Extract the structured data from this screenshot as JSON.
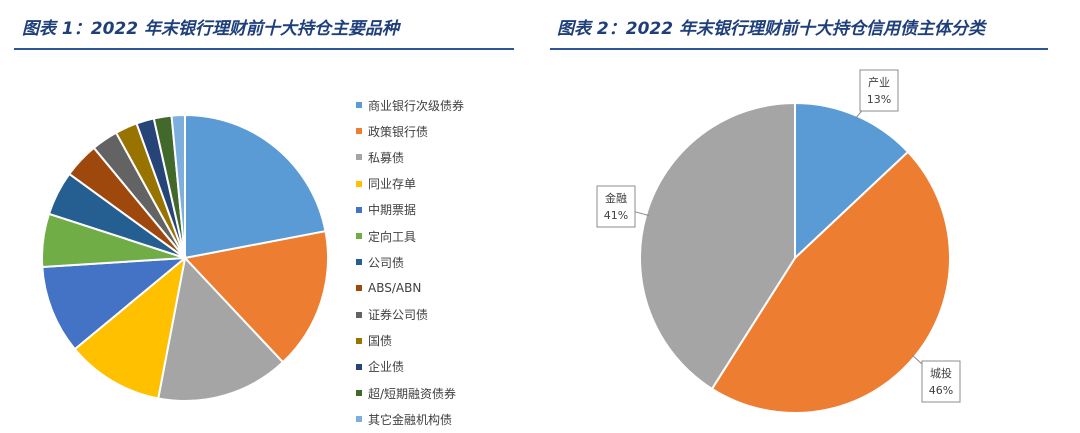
{
  "charts": {
    "left": {
      "title": "图表 1：2022 年末银行理财前十大持仓主要品种"
    },
    "right": {
      "title": "图表 2：2022 年末银行理财前十大持仓信用债主体分类"
    }
  },
  "chart_data": [
    {
      "type": "pie",
      "title": "图表 1：2022 年末银行理财前十大持仓主要品种",
      "legend_position": "right",
      "categories": [
        "商业银行次级债券",
        "政策银行债",
        "私募债",
        "同业存单",
        "中期票据",
        "定向工具",
        "公司债",
        "ABS/ABN",
        "证券公司债",
        "国债",
        "企业债",
        "超/短期融资债券",
        "其它金融机构债"
      ],
      "values": [
        22,
        16,
        15,
        11,
        10,
        6,
        5,
        4,
        3,
        2.5,
        2,
        2,
        1.5
      ],
      "colors": [
        "#5b9bd5",
        "#ed7d31",
        "#a5a5a5",
        "#ffc000",
        "#4472c4",
        "#70ad47",
        "#255e91",
        "#9e480e",
        "#636363",
        "#997300",
        "#264478",
        "#43682b",
        "#7cafdd"
      ]
    },
    {
      "type": "pie",
      "title": "图表 2：2022 年末银行理财前十大持仓信用债主体分类",
      "categories": [
        "产业",
        "城投",
        "金融"
      ],
      "values": [
        13,
        46,
        41
      ],
      "value_labels": [
        "13%",
        "46%",
        "41%"
      ],
      "colors": [
        "#5b9bd5",
        "#ed7d31",
        "#a5a5a5"
      ]
    }
  ]
}
